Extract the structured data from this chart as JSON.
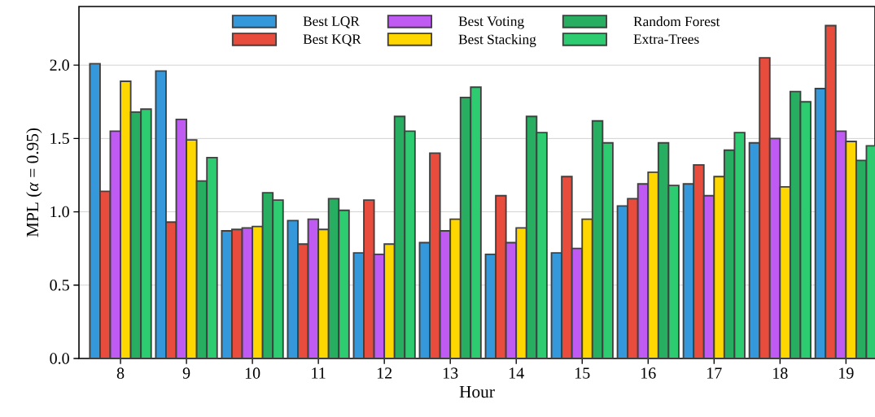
{
  "chart_data": {
    "type": "bar",
    "xlabel": "Hour",
    "ylabel": "MPL (*α* = 0.95)",
    "categories": [
      "8",
      "9",
      "10",
      "11",
      "12",
      "13",
      "14",
      "15",
      "16",
      "17",
      "18",
      "19"
    ],
    "series": [
      {
        "name": "Best LQR",
        "color": "#3498db",
        "values": [
          2.01,
          1.96,
          0.87,
          0.94,
          0.72,
          0.79,
          0.71,
          0.72,
          1.04,
          1.19,
          1.47,
          1.84
        ]
      },
      {
        "name": "Best KQR",
        "color": "#e74c3c",
        "values": [
          1.14,
          0.93,
          0.88,
          0.78,
          1.08,
          1.4,
          1.11,
          1.24,
          1.09,
          1.32,
          2.05,
          2.27
        ]
      },
      {
        "name": "Best Voting",
        "color": "#bf5af2",
        "values": [
          1.55,
          1.63,
          0.89,
          0.95,
          0.71,
          0.87,
          0.79,
          0.75,
          1.19,
          1.11,
          1.5,
          1.55
        ]
      },
      {
        "name": "Best Stacking",
        "color": "#ffd700",
        "values": [
          1.89,
          1.49,
          0.9,
          0.88,
          0.78,
          0.95,
          0.89,
          0.95,
          1.27,
          1.24,
          1.17,
          1.48
        ]
      },
      {
        "name": "Random Forest",
        "color": "#27ae60",
        "values": [
          1.68,
          1.21,
          1.13,
          1.09,
          1.65,
          1.78,
          1.65,
          1.62,
          1.47,
          1.42,
          1.82,
          1.35
        ]
      },
      {
        "name": "Extra-Trees",
        "color": "#2ecc71",
        "values": [
          1.7,
          1.37,
          1.08,
          1.01,
          1.55,
          1.85,
          1.54,
          1.47,
          1.18,
          1.54,
          1.75,
          1.45
        ]
      }
    ],
    "ylim": [
      0,
      2.4
    ],
    "yticks": [
      {
        "value": 0,
        "label": "0.0"
      },
      {
        "value": 0.5,
        "label": "0.5"
      },
      {
        "value": 1,
        "label": "1.0"
      },
      {
        "value": 1.5,
        "label": "1.5"
      },
      {
        "value": 2,
        "label": "2.0"
      }
    ],
    "grid": "y",
    "legend": "top"
  }
}
